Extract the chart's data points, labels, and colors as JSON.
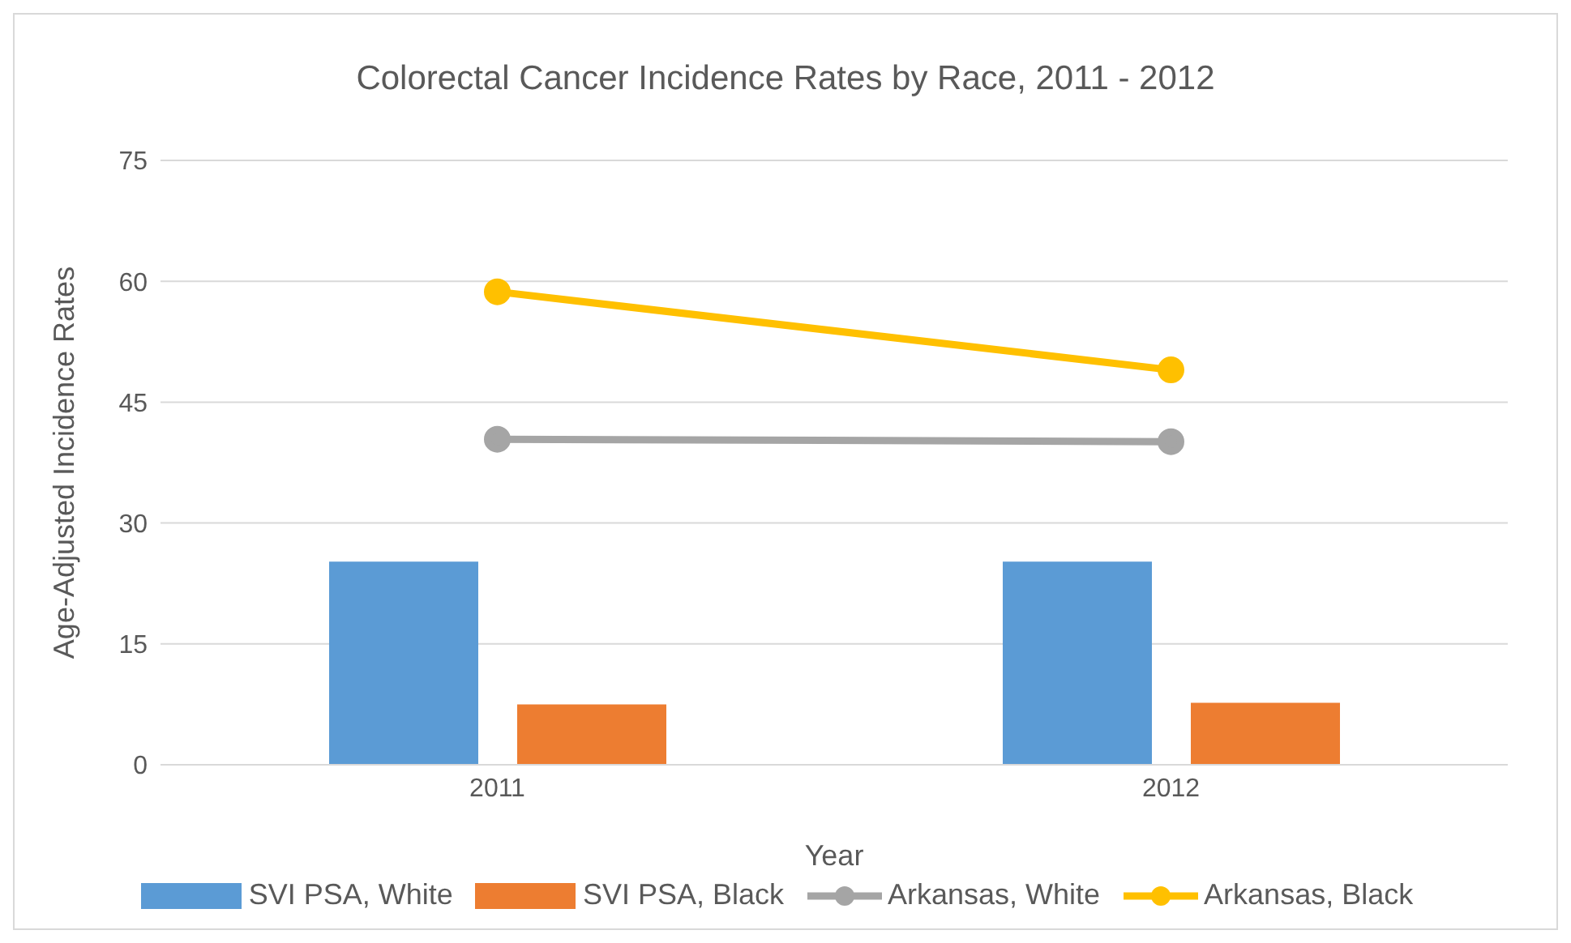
{
  "chart_data": {
    "type": "bar",
    "title": "Colorectal Cancer Incidence Rates by Race, 2011 - 2012",
    "xlabel": "Year",
    "ylabel": "Age-Adjusted Incidence Rates",
    "categories": [
      "2011",
      "2012"
    ],
    "series": [
      {
        "name": "SVI PSA, White",
        "color": "#5b9bd5",
        "values": [
          25.2,
          25.2
        ]
      },
      {
        "name": "SVI PSA, Black",
        "color": "#ed7d31",
        "values": [
          7.5,
          7.7
        ]
      },
      {
        "name": "Arkansas, White",
        "type": "line",
        "color": "#a5a5a5",
        "values": [
          40.4,
          40.1
        ]
      },
      {
        "name": "Arkansas, Black",
        "type": "line",
        "color": "#ffc000",
        "values": [
          58.7,
          49.0
        ]
      }
    ],
    "ylim": [
      0,
      75
    ],
    "yticks": [
      0,
      15,
      30,
      45,
      60,
      75
    ],
    "grid": "y",
    "legend": "bottom",
    "marker": "circle"
  }
}
